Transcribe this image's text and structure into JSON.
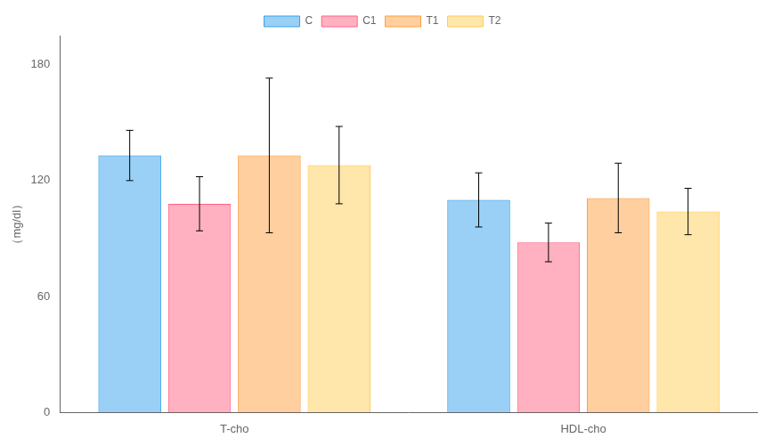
{
  "chart_data": {
    "type": "bar",
    "categories": [
      "T-cho",
      "HDL-cho"
    ],
    "series": [
      {
        "name": "C",
        "values": [
          133,
          110
        ],
        "errors": [
          13,
          14
        ]
      },
      {
        "name": "C1",
        "values": [
          108,
          88
        ],
        "errors": [
          14,
          10
        ]
      },
      {
        "name": "T1",
        "values": [
          133,
          111
        ],
        "errors": [
          40,
          18
        ]
      },
      {
        "name": "T2",
        "values": [
          128,
          104
        ],
        "errors": [
          20,
          12
        ]
      }
    ],
    "ylabel": "（mg/dl）",
    "ylim": [
      0,
      195
    ],
    "yticks": [
      0,
      60,
      120,
      180
    ],
    "grid": false,
    "legend": "top"
  }
}
